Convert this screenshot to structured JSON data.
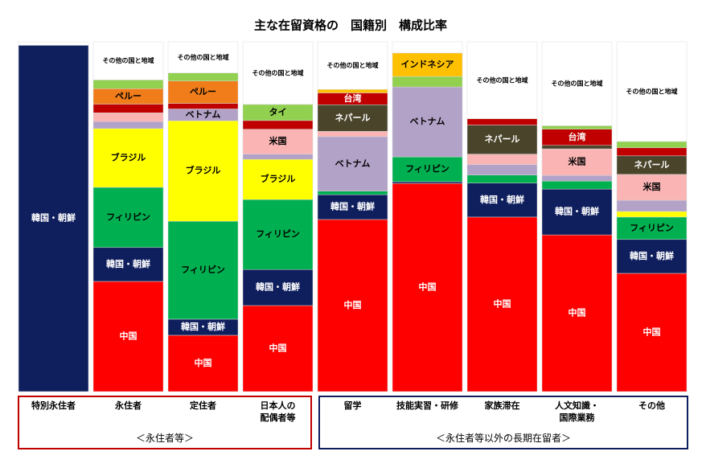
{
  "chart_data": {
    "type": "stacked_bar",
    "title": "主な在留資格の　国籍別　構成比率",
    "categories": [
      "特別永住者",
      "永住者",
      "定住者",
      "日本人の\n配偶者等",
      "留学",
      "技能実習・研修",
      "家族滞在",
      "人文知識・\n国際業務",
      "その他"
    ],
    "groups": [
      "＜永住者等＞",
      "＜永住者等以外の長期在留者＞"
    ],
    "ylim": [
      0,
      100
    ],
    "series": [
      {
        "name": "中国",
        "color": "#ff0000",
        "values": [
          null,
          31.5,
          16.1,
          24.6,
          49.2,
          59.5,
          49.9,
          44.8,
          33.8
        ]
      },
      {
        "name": "韓国・朝鮮",
        "color": "#0f1f5e",
        "values": [
          99,
          9.7,
          4.6,
          10.3,
          7.1,
          0.5,
          9.7,
          13.1,
          9.7
        ]
      },
      {
        "name": "フィリピン",
        "color": "#00b050",
        "values": [
          null,
          17.2,
          28,
          20,
          1,
          7.1,
          2.3,
          2.3,
          6.4
        ]
      },
      {
        "name": "ブラジル",
        "color": "#ffff00",
        "values": [
          null,
          16.8,
          28.7,
          11.5,
          null,
          null,
          null,
          null,
          1.6
        ]
      },
      {
        "name": "ベトナム",
        "color": "#b3a2c7",
        "values": [
          null,
          2,
          3.4,
          1.5,
          15.6,
          20,
          3,
          1.6,
          3.2
        ]
      },
      {
        "name": "米国",
        "color": "#fab4b4",
        "values": [
          null,
          2.5,
          null,
          7.1,
          1.5,
          null,
          3,
          7.6,
          7.4
        ]
      },
      {
        "name": "ネパール",
        "color": "#4a452a",
        "values": [
          null,
          null,
          null,
          null,
          7.6,
          null,
          8.3,
          1,
          5.3
        ]
      },
      {
        "name": "台湾",
        "color": "#c00000",
        "values": [
          null,
          2.5,
          1.6,
          2.5,
          3.4,
          null,
          1.8,
          4.6,
          2.3
        ]
      },
      {
        "name": "ペルー",
        "color": "#f07d1a",
        "values": [
          null,
          4.4,
          6.4,
          null,
          null,
          null,
          null,
          null,
          null
        ]
      },
      {
        "name": "タイ",
        "color": "#92d050",
        "values": [
          null,
          2.5,
          2.3,
          4.6,
          null,
          3,
          null,
          1,
          1.8
        ]
      },
      {
        "name": "インドネシア",
        "color": "#ffc000",
        "values": [
          null,
          null,
          null,
          null,
          1,
          6.7,
          null,
          null,
          null
        ]
      },
      {
        "name": "その他の国と地域",
        "color": "#ffffff",
        "values": [
          1,
          10.9,
          8.9,
          17.9,
          13.6,
          3.2,
          22,
          24,
          28.5
        ]
      }
    ]
  }
}
